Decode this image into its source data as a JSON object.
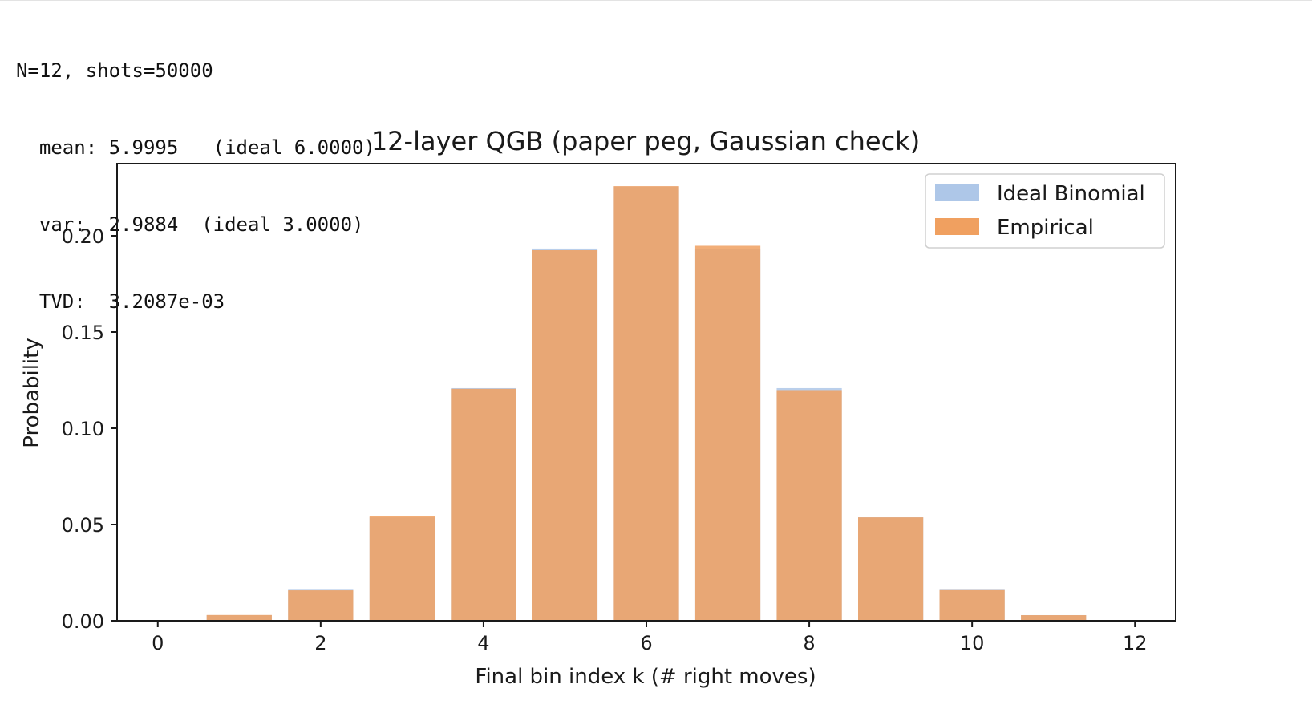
{
  "console": {
    "lines": [
      "N=12, shots=50000",
      "  mean: 5.9995   (ideal 6.0000)",
      "  var:  2.9884  (ideal 3.0000)",
      "  TVD:  3.2087e-03"
    ]
  },
  "chart_data": {
    "type": "bar",
    "title": "12-layer QGB (paper peg, Gaussian check)",
    "xlabel": "Final bin index k (# right moves)",
    "ylabel": "Probability",
    "x": [
      0,
      1,
      2,
      3,
      4,
      5,
      6,
      7,
      8,
      9,
      10,
      11,
      12
    ],
    "xticks": [
      "0",
      "2",
      "4",
      "6",
      "8",
      "10",
      "12"
    ],
    "yticks": [
      "0.00",
      "0.05",
      "0.10",
      "0.15",
      "0.20"
    ],
    "xlim": [
      -0.5,
      12.5
    ],
    "ylim": [
      0,
      0.2375
    ],
    "legend_position": "top-right",
    "grid": false,
    "series": [
      {
        "name": "Ideal Binomial",
        "color": "#aec7e8",
        "values": [
          0.000244,
          0.00293,
          0.01611,
          0.05371,
          0.12085,
          0.19336,
          0.22559,
          0.19336,
          0.12085,
          0.05371,
          0.01611,
          0.00293,
          0.000244
        ]
      },
      {
        "name": "Empirical",
        "color": "#f0a060",
        "values": [
          0.0003,
          0.003,
          0.0158,
          0.0545,
          0.1205,
          0.1925,
          0.2258,
          0.1948,
          0.1198,
          0.0537,
          0.0159,
          0.0029,
          0.0003
        ]
      }
    ]
  }
}
